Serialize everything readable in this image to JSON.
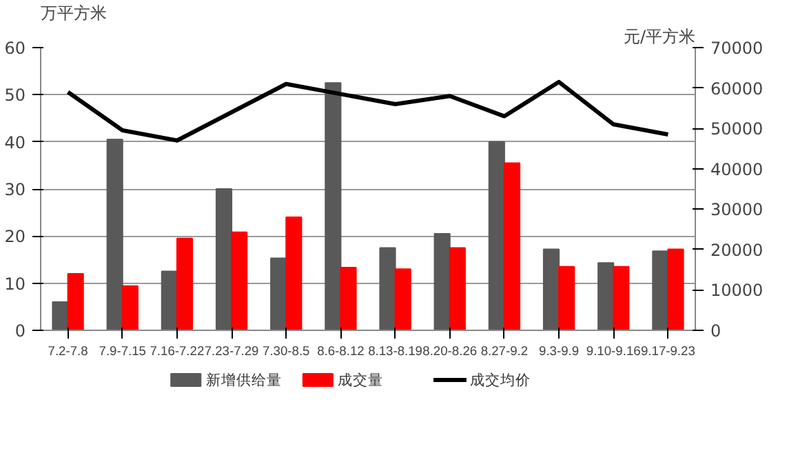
{
  "chart_data": {
    "type": "bar",
    "ylabel": "万平方米",
    "y2label": "元/平方米",
    "categories": [
      "7.2-7.8",
      "7.9-7.15",
      "7.16-7.22",
      "7.23-7.29",
      "7.30-8.5",
      "8.6-8.12",
      "8.13-8.19",
      "8.20-8.26",
      "8.27-9.2",
      "9.3-9.9",
      "9.10-9.16",
      "9.17-9.23"
    ],
    "series": [
      {
        "name": "新增供给量",
        "color": "#595959",
        "values": [
          6,
          40.5,
          12.5,
          30,
          15.3,
          52.5,
          17.5,
          20.5,
          40,
          17.2,
          14.3,
          16.8
        ]
      },
      {
        "name": "成交量",
        "color": "#ff0000",
        "values": [
          12,
          9.4,
          19.5,
          20.8,
          24,
          13.3,
          13,
          17.5,
          35.5,
          13.5,
          13.5,
          17.2
        ]
      },
      {
        "name": "成交均价",
        "type": "line",
        "axis": "y2",
        "color": "#000000",
        "values": [
          59000,
          49500,
          47000,
          54000,
          61000,
          58500,
          56000,
          58000,
          53000,
          61500,
          51000,
          48500
        ]
      }
    ],
    "ylim": [
      0,
      60
    ],
    "yticks": [
      0,
      10,
      20,
      30,
      40,
      50,
      60
    ],
    "y2lim": [
      0,
      70000
    ],
    "y2ticks": [
      0,
      10000,
      20000,
      30000,
      40000,
      50000,
      60000,
      70000
    ],
    "grid": "y",
    "legend": "bottom"
  }
}
